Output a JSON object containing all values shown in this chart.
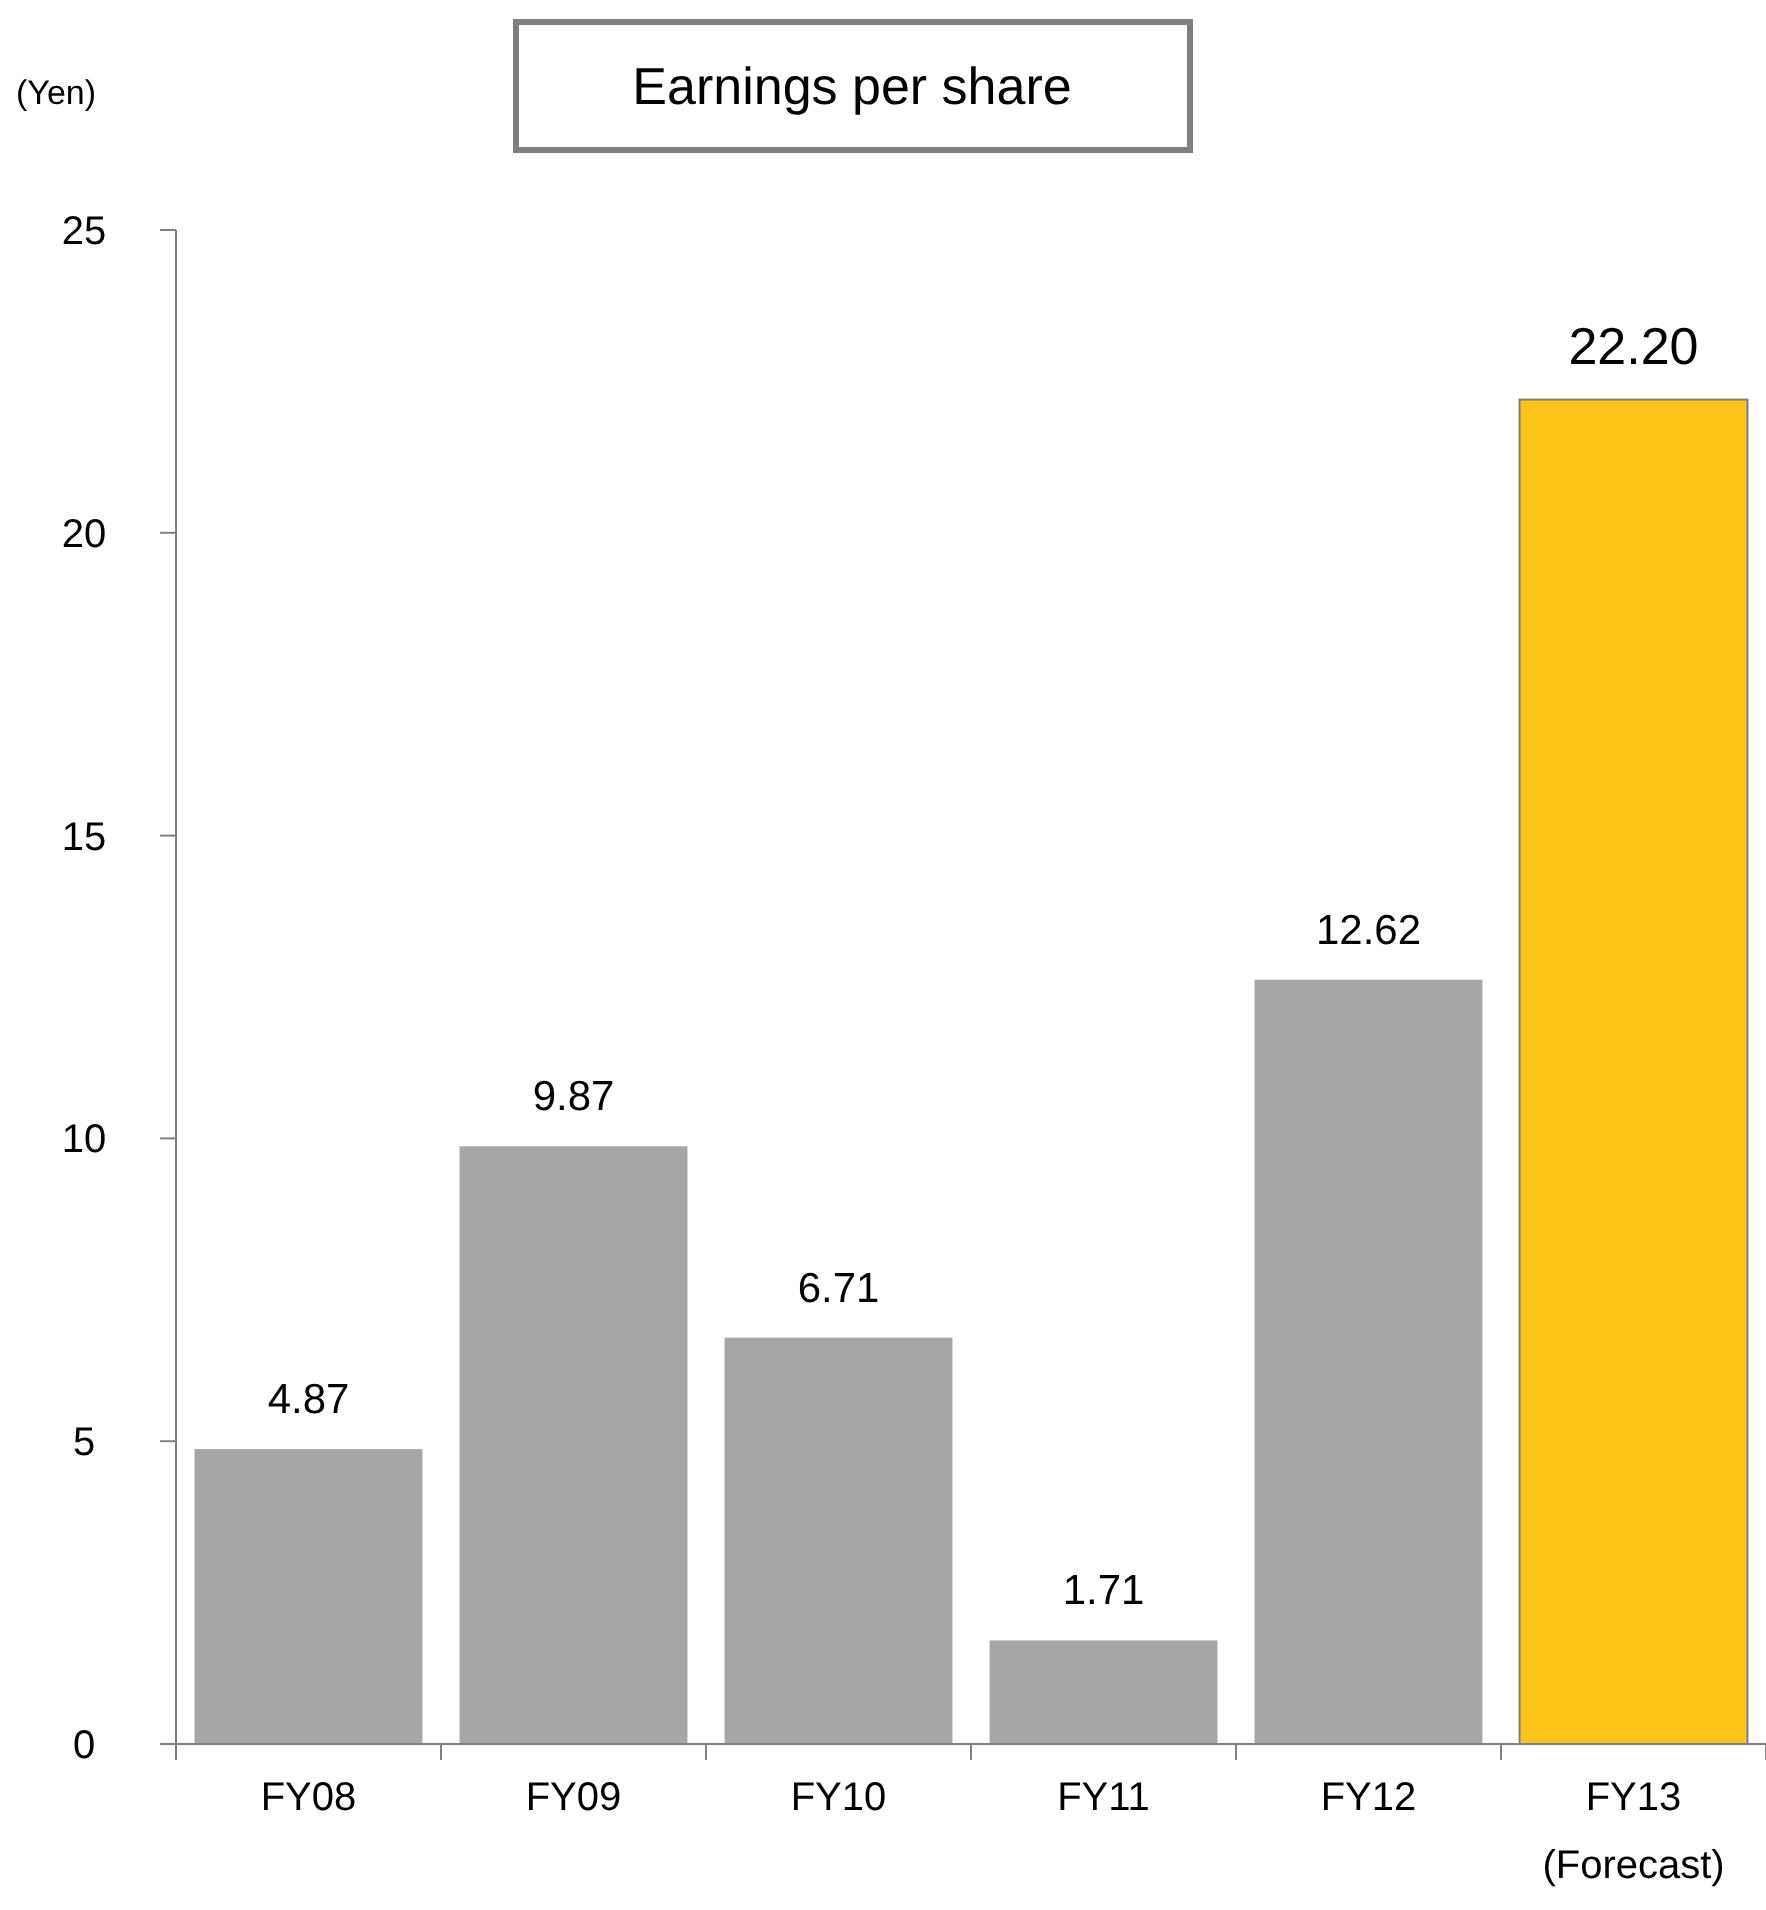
{
  "chart_data": {
    "type": "bar",
    "title": "Earnings per share",
    "ylabel": "(Yen)",
    "categories": [
      "FY08",
      "FY09",
      "FY10",
      "FY11",
      "FY12",
      "FY13\n(Forecast)"
    ],
    "values": [
      4.87,
      9.87,
      6.71,
      1.71,
      12.62,
      22.2
    ],
    "colors": [
      "#a6a6a6",
      "#a6a6a6",
      "#a6a6a6",
      "#a6a6a6",
      "#a6a6a6",
      "#fdc318"
    ],
    "value_labels": [
      "4.87",
      "9.87",
      "6.71",
      "1.71",
      "12.62",
      "22.20"
    ],
    "ylim": [
      0,
      25
    ],
    "yticks": [
      0,
      5,
      10,
      15,
      20,
      25
    ],
    "grid": false
  }
}
